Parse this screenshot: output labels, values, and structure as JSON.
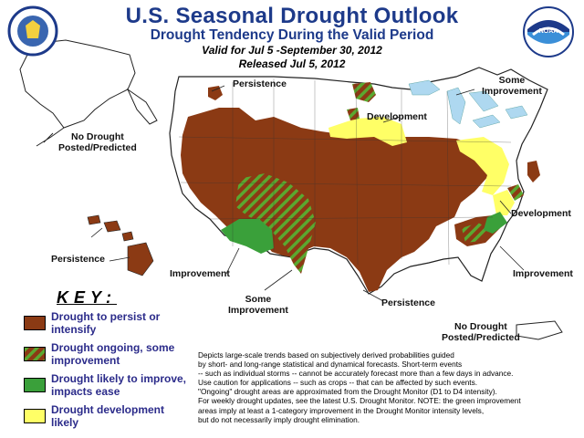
{
  "header": {
    "title": "U.S. Seasonal Drought Outlook",
    "subtitle": "Drought Tendency During the Valid Period",
    "valid": "Valid for Jul 5 -September 30, 2012",
    "released": "Released Jul 5, 2012"
  },
  "logos": {
    "left": "commerce-seal",
    "right": "noaa-logo",
    "noaa_text": "NOAA"
  },
  "map_labels": {
    "persistence_nw": "Persistence",
    "no_drought_ak": [
      "No Drought",
      "Posted/Predicted"
    ],
    "some_improvement_ne": [
      "Some",
      "Improvement"
    ],
    "development_mw": "Development",
    "development_se": "Development",
    "persistence_hi": "Persistence",
    "improvement_sw": "Improvement",
    "some_improvement_s": [
      "Some",
      "Improvement"
    ],
    "persistence_tx": "Persistence",
    "improvement_se": "Improvement",
    "no_drought_pr": [
      "No Drought",
      "Posted/Predicted"
    ]
  },
  "key": {
    "title": "KEY:",
    "items": [
      {
        "label": [
          "Drought to persist or",
          "intensify"
        ],
        "color": "#8b3a14",
        "pattern": "solid"
      },
      {
        "label": [
          "Drought ongoing, some",
          "improvement"
        ],
        "color": "#8b3a14",
        "pattern": "stripes-green"
      },
      {
        "label": [
          "Drought likely to improve,",
          "impacts ease"
        ],
        "color": "#3aa03a",
        "pattern": "solid"
      },
      {
        "label": [
          "Drought development",
          "likely"
        ],
        "color": "#ffff66",
        "pattern": "solid"
      }
    ]
  },
  "notes": [
    "Depicts large-scale trends based on subjectively derived probabilities guided",
    "by short- and long-range statistical and dynamical forecasts. Short-term events",
    "-- such as individual storms -- cannot be accurately forecast more than a few days in advance.",
    "Use caution for applications -- such as crops -- that can be affected by such events.",
    "\"Ongoing\" drought areas are approximated from the Drought Monitor (D1 to D4 intensity).",
    "For weekly drought updates, see the latest U.S. Drought Monitor. NOTE: the green improvement",
    "areas imply at least a 1-category improvement in the Drought Monitor intensity levels,",
    "but do not necessarily imply drought elimination."
  ],
  "colors": {
    "persist": "#8b3a14",
    "improve": "#3aa03a",
    "develop": "#ffff66",
    "title": "#1d3a8a",
    "water": "#aed8f0"
  }
}
